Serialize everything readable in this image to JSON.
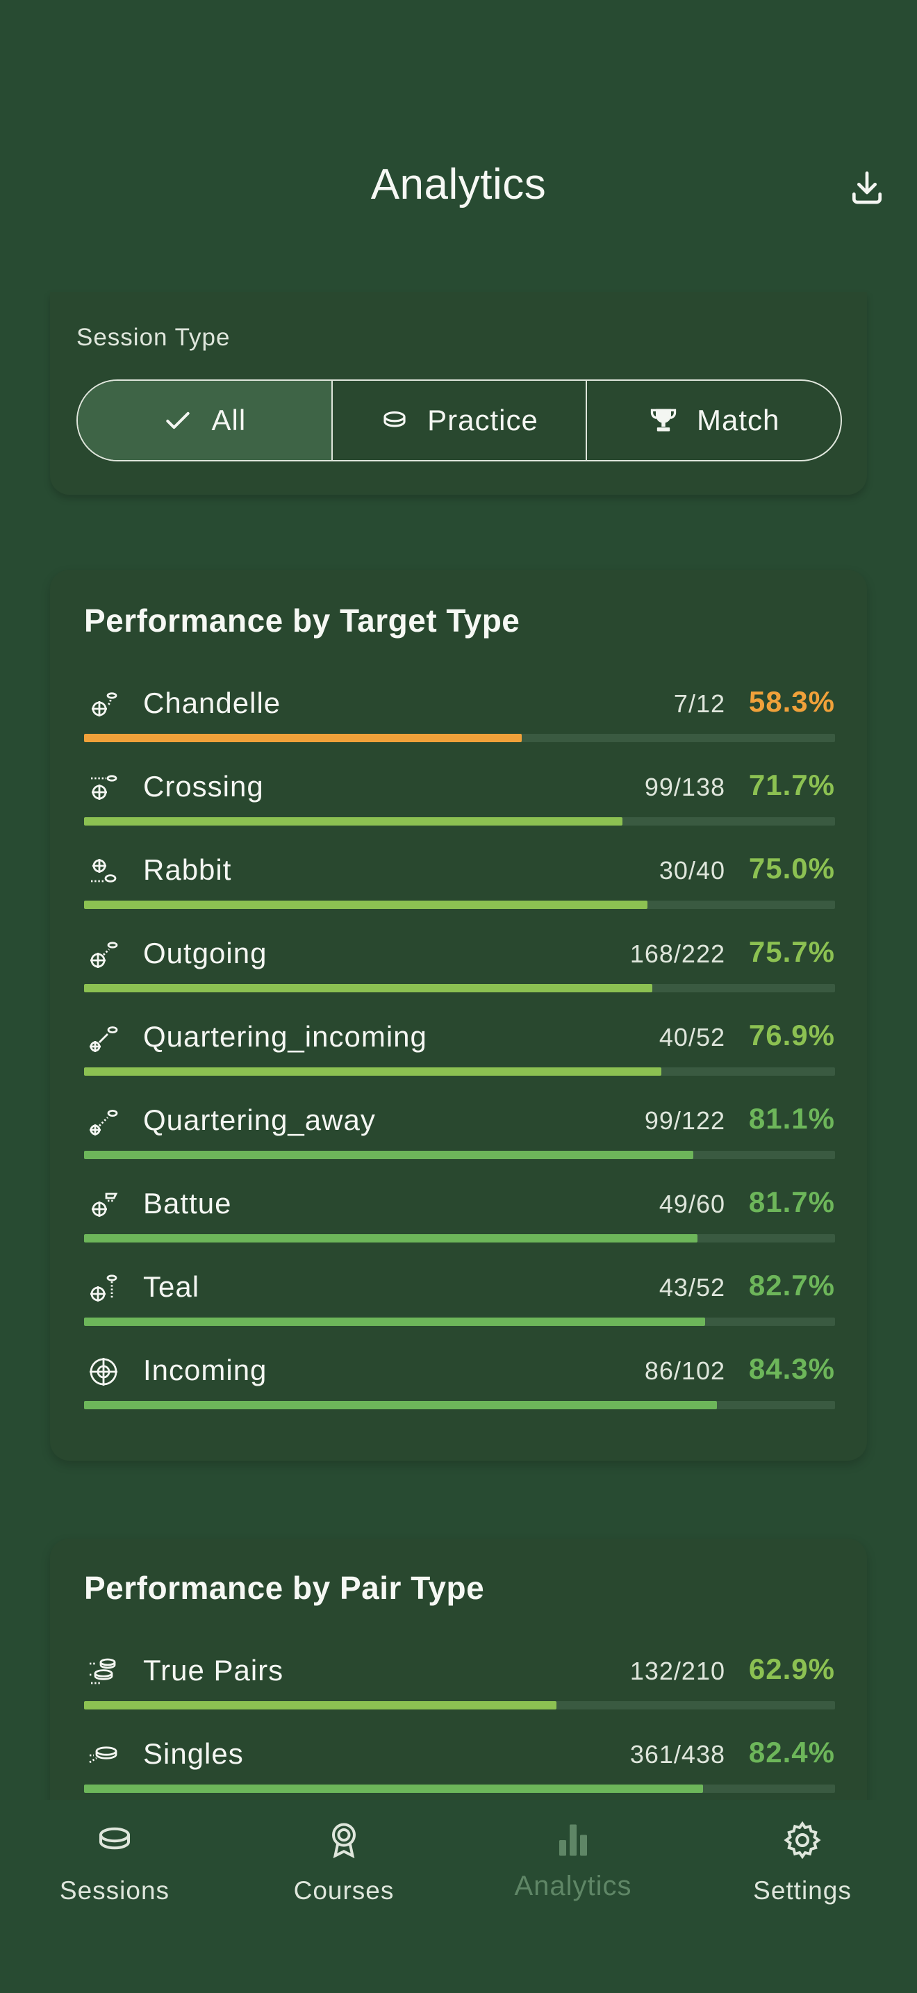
{
  "header": {
    "title": "Analytics",
    "download_icon": "download-icon"
  },
  "session_filter": {
    "label": "Session Type",
    "options": [
      {
        "label": "All",
        "icon": "check-icon",
        "selected": true
      },
      {
        "label": "Practice",
        "icon": "clay-target-icon",
        "selected": false
      },
      {
        "label": "Match",
        "icon": "trophy-icon",
        "selected": false
      }
    ]
  },
  "target_performance": {
    "title": "Performance by Target Type",
    "rows": [
      {
        "name": "Chandelle",
        "fraction": "7/12",
        "percent": "58.3%",
        "value": 0.583,
        "color": "#f0a13a"
      },
      {
        "name": "Crossing",
        "fraction": "99/138",
        "percent": "71.7%",
        "value": 0.717,
        "color": "#8cc152"
      },
      {
        "name": "Rabbit",
        "fraction": "30/40",
        "percent": "75.0%",
        "value": 0.75,
        "color": "#8cc152"
      },
      {
        "name": "Outgoing",
        "fraction": "168/222",
        "percent": "75.7%",
        "value": 0.757,
        "color": "#8cc152"
      },
      {
        "name": "Quartering_incoming",
        "fraction": "40/52",
        "percent": "76.9%",
        "value": 0.769,
        "color": "#8cc152"
      },
      {
        "name": "Quartering_away",
        "fraction": "99/122",
        "percent": "81.1%",
        "value": 0.811,
        "color": "#6db65a"
      },
      {
        "name": "Battue",
        "fraction": "49/60",
        "percent": "81.7%",
        "value": 0.817,
        "color": "#6db65a"
      },
      {
        "name": "Teal",
        "fraction": "43/52",
        "percent": "82.7%",
        "value": 0.827,
        "color": "#6db65a"
      },
      {
        "name": "Incoming",
        "fraction": "86/102",
        "percent": "84.3%",
        "value": 0.843,
        "color": "#6db65a"
      }
    ]
  },
  "pair_performance": {
    "title": "Performance by Pair Type",
    "rows": [
      {
        "name": "True Pairs",
        "fraction": "132/210",
        "percent": "62.9%",
        "value": 0.629,
        "color": "#8cc152"
      },
      {
        "name": "Singles",
        "fraction": "361/438",
        "percent": "82.4%",
        "value": 0.824,
        "color": "#6db65a"
      }
    ]
  },
  "bottom_nav": {
    "items": [
      {
        "label": "Sessions",
        "icon": "clay-target-icon",
        "active": false
      },
      {
        "label": "Courses",
        "icon": "award-icon",
        "active": false
      },
      {
        "label": "Analytics",
        "icon": "bar-chart-icon",
        "active": true
      },
      {
        "label": "Settings",
        "icon": "gear-icon",
        "active": false
      }
    ]
  },
  "colors": {
    "background": "#284b32",
    "card": "#29482f",
    "selected_segment": "#3e6446",
    "track": "#3a5a41",
    "warning": "#f0a13a",
    "good": "#8cc152",
    "better": "#6db65a"
  }
}
